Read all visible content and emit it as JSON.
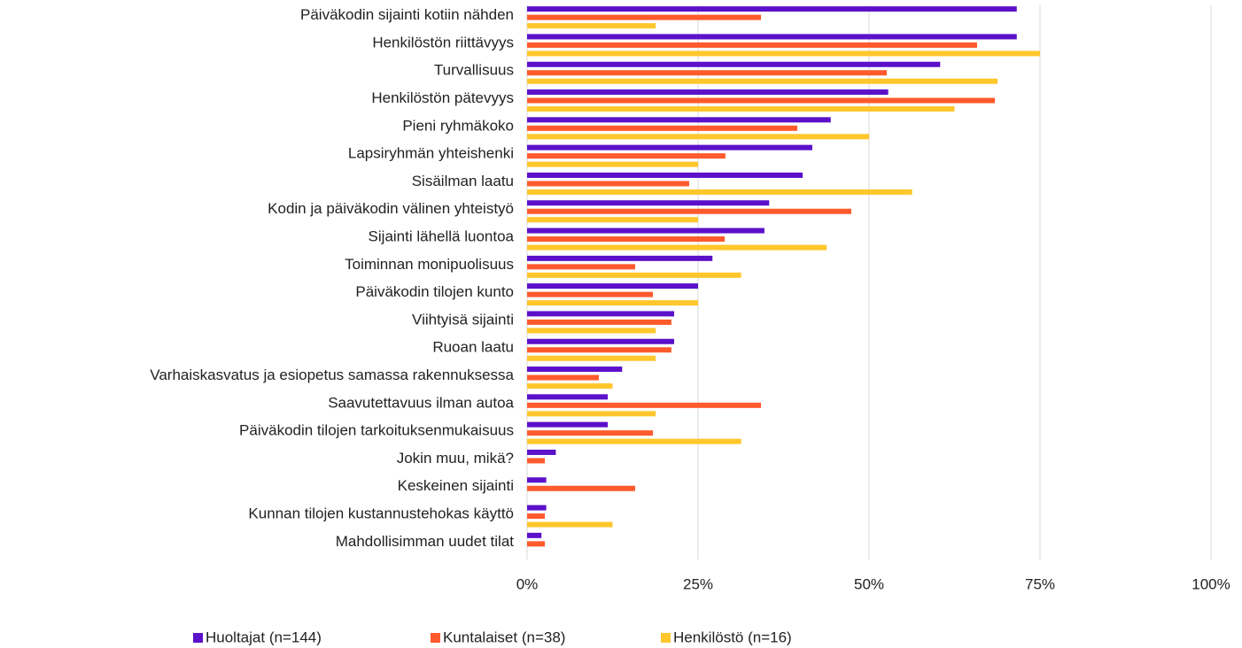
{
  "chart_data": {
    "type": "hbar",
    "categories": [
      "Päiväkodin sijainti kotiin nähden",
      "Henkilöstön riittävyys",
      "Turvallisuus",
      "Henkilöstön pätevyys",
      "Pieni ryhmäkoko",
      "Lapsiryhmän yhteishenki",
      "Sisäilman laatu",
      "Kodin ja päiväkodin välinen yhteistyö",
      "Sijainti lähellä luontoa",
      "Toiminnan monipuolisuus",
      "Päiväkodin tilojen kunto",
      "Viihtyisä sijainti",
      "Ruoan laatu",
      "Varhaiskasvatus ja esiopetus samassa rakennuksessa",
      "Saavutettavuus ilman autoa",
      "Päiväkodin tilojen tarkoituksenmukaisuus",
      "Jokin muu, mikä?",
      "Keskeinen sijainti",
      "Kunnan tilojen kustannustehokas käyttö",
      "Mahdollisimman uudet tilat"
    ],
    "series": [
      {
        "name": "Huoltajat (n=144)",
        "color": "#5b10c9",
        "values": [
          71.6,
          71.6,
          60.4,
          52.8,
          44.4,
          41.7,
          40.3,
          35.4,
          34.7,
          27.1,
          25,
          21.5,
          21.5,
          13.9,
          11.8,
          11.8,
          4.2,
          2.8,
          2.8,
          2.1
        ]
      },
      {
        "name": "Kuntalaiset (n=38)",
        "color": "#ff5a2d",
        "values": [
          34.2,
          65.8,
          52.6,
          68.4,
          39.5,
          29,
          23.7,
          47.4,
          28.9,
          15.8,
          18.4,
          21.1,
          21.1,
          10.5,
          34.2,
          18.4,
          2.6,
          15.8,
          2.6,
          2.6
        ]
      },
      {
        "name": "Henkilöstö (n=16)",
        "color": "#ffc72c",
        "values": [
          18.8,
          75,
          68.8,
          62.5,
          50,
          25,
          56.3,
          25,
          43.8,
          31.3,
          25,
          18.8,
          18.8,
          12.5,
          18.8,
          31.3,
          0,
          0,
          12.5,
          0
        ]
      }
    ],
    "xlim": [
      0,
      100
    ],
    "xticks": [
      {
        "value": 0,
        "label": "0%"
      },
      {
        "value": 25,
        "label": "25%"
      },
      {
        "value": 50,
        "label": "50%"
      },
      {
        "value": 75,
        "label": "75%"
      },
      {
        "value": 100,
        "label": "100%"
      }
    ],
    "grid": true,
    "legend": "bottom"
  }
}
